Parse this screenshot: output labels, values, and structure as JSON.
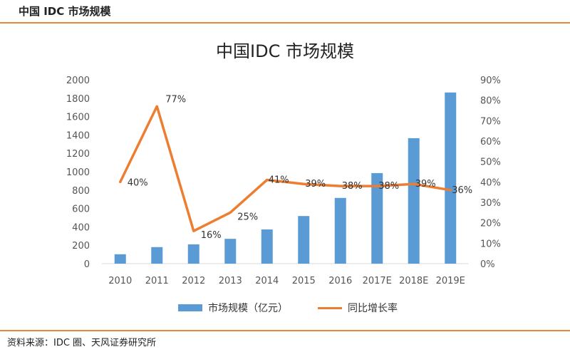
{
  "header": {
    "title": "中国 IDC 市场规模"
  },
  "footer": {
    "source": "资料来源：IDC 圈、天风证券研究所"
  },
  "colors": {
    "accent": "#e8863a",
    "bar": "#5b9bd5",
    "line": "#ed7d31"
  },
  "chart_data": {
    "type": "bar+line",
    "title": "中国IDC 市场规模",
    "categories": [
      "2010",
      "2011",
      "2012",
      "2013",
      "2014",
      "2015",
      "2016",
      "2017E",
      "2018E",
      "2019E"
    ],
    "series": [
      {
        "name": "市场规模（亿元）",
        "type": "bar",
        "axis": "left",
        "values": [
          102,
          180,
          210,
          270,
          372,
          518,
          715,
          985,
          1365,
          1862
        ]
      },
      {
        "name": "同比增长率",
        "type": "line",
        "axis": "right",
        "values": [
          40,
          77,
          16,
          25,
          41,
          39,
          38,
          38,
          39,
          36
        ],
        "labels": [
          "40%",
          "77%",
          "16%",
          "25%",
          "41%",
          "39%",
          "38%",
          "38%",
          "39%",
          "36%"
        ]
      }
    ],
    "y_left": {
      "min": 0,
      "max": 2000,
      "step": 200,
      "ticks": [
        "0",
        "200",
        "400",
        "600",
        "800",
        "1000",
        "1200",
        "1400",
        "1600",
        "1800",
        "2000"
      ]
    },
    "y_right": {
      "min": 0,
      "max": 90,
      "step": 10,
      "ticks": [
        "0%",
        "10%",
        "20%",
        "30%",
        "40%",
        "50%",
        "60%",
        "70%",
        "80%",
        "90%"
      ]
    },
    "grid": false,
    "legend": "bottom"
  }
}
